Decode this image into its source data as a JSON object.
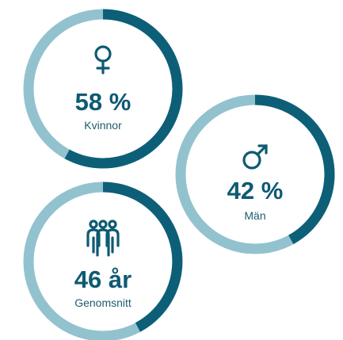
{
  "items": [
    {
      "value": 58,
      "value_label": "58 %",
      "caption": "Kvinnor"
    },
    {
      "value": 42,
      "value_label": "42 %",
      "caption": "Män"
    },
    {
      "value_label": "46 år",
      "caption": "Genomsnitt"
    }
  ]
}
